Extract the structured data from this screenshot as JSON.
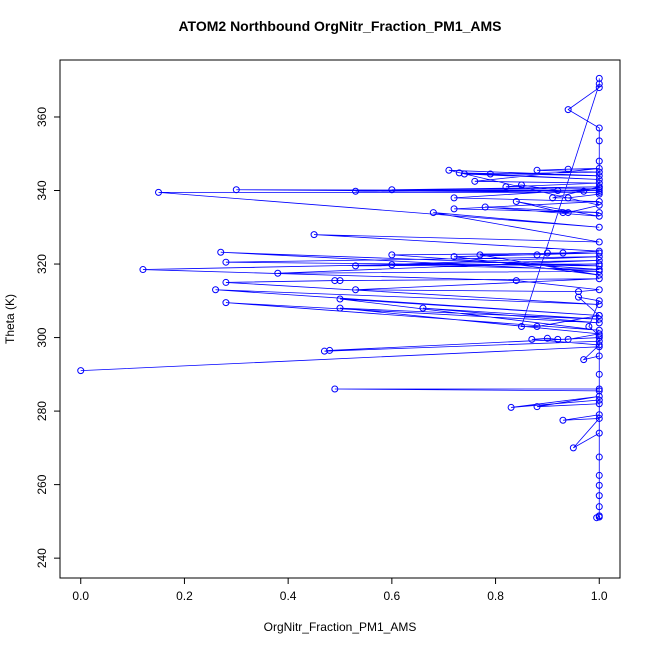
{
  "chart_data": {
    "type": "line",
    "title": "ATOM2 Northbound OrgNitr_Fraction_PM1_AMS",
    "x_label": "OrgNitr_Fraction_PM1_AMS",
    "y_label": "Theta (K)",
    "x": [
      0.0,
      1.0,
      1.0,
      0.48,
      0.47,
      1.0,
      1.0,
      0.49,
      1.0,
      1.0,
      0.83,
      1.0,
      0.88,
      1.0,
      1.0,
      0.93,
      1.0,
      0.95,
      1.0,
      1.0,
      1.0,
      1.0,
      1.0,
      1.0,
      1.0,
      0.995,
      1.0,
      1.0,
      1.0,
      0.97,
      1.0,
      0.87,
      0.9,
      0.92,
      0.94,
      1.0,
      0.5,
      1.0,
      0.66,
      1.0,
      0.28,
      1.0,
      0.5,
      1.0,
      0.26,
      1.0,
      0.28,
      0.49,
      0.5,
      1.0,
      0.53,
      0.96,
      1.0,
      0.84,
      0.12,
      1.0,
      0.38,
      1.0,
      0.27,
      1.0,
      0.28,
      1.0,
      0.53,
      1.0,
      0.6,
      1.0,
      0.6,
      1.0,
      0.72,
      1.0,
      0.77,
      0.88,
      0.9,
      0.93,
      1.0,
      0.45,
      1.0,
      0.68,
      1.0,
      0.15,
      1.0,
      0.3,
      1.0,
      0.53,
      1.0,
      0.6,
      1.0,
      0.72,
      1.0,
      0.72,
      1.0,
      0.78,
      1.0,
      0.84,
      0.93,
      0.94,
      1.0,
      0.71,
      1.0,
      0.73,
      1.0,
      0.74,
      0.79,
      1.0,
      0.88,
      0.94,
      1.0,
      0.76,
      1.0,
      0.82,
      0.85,
      0.92,
      0.97,
      1.0,
      0.91,
      0.94,
      1.0,
      1.0,
      1.0,
      1.0,
      0.94,
      1.0,
      1.0,
      1.0,
      0.85,
      0.88,
      1.0,
      0.96,
      1.0,
      0.98,
      1.0
    ],
    "series": [
      {
        "color": "#0000ff",
        "values": [
          291,
          297.5,
          300,
          296.5,
          296.3,
          299,
          286,
          286,
          285.5,
          283,
          281,
          284,
          281.2,
          282,
          279,
          277.5,
          278,
          270,
          274,
          267.5,
          262.5,
          259.8,
          257,
          254,
          251.2,
          251,
          251.5,
          290,
          295,
          294,
          298,
          299.5,
          299.8,
          299.5,
          299.5,
          301,
          308,
          305,
          308,
          304,
          309.5,
          302,
          310.5,
          306,
          313,
          309,
          315,
          315.5,
          315.5,
          316,
          313,
          312.5,
          313,
          315.5,
          318.5,
          321,
          317.5,
          318,
          323.2,
          319.5,
          320.5,
          322,
          319.5,
          320,
          319.8,
          318.5,
          322.5,
          323,
          322,
          317,
          322.5,
          322.5,
          323,
          323,
          323.5,
          328,
          326,
          334,
          330,
          339.5,
          339.5,
          340.2,
          340,
          339.8,
          341,
          340.2,
          340.5,
          338,
          337,
          335,
          334,
          335.5,
          333,
          337,
          334,
          334,
          336,
          345.5,
          344,
          344.8,
          343,
          344.5,
          344.5,
          345,
          345.5,
          345.8,
          346,
          342.5,
          342,
          341,
          341.5,
          340,
          339.8,
          341,
          338,
          338,
          339,
          348,
          353.5,
          357,
          362,
          368,
          370.5,
          369,
          303,
          303,
          306,
          311,
          310,
          303,
          300.5
        ]
      }
    ],
    "xlim": [
      -0.04,
      1.04
    ],
    "ylim": [
      234.6,
      375.5
    ],
    "xticks": [
      {
        "value": 0,
        "label": "0.0"
      },
      {
        "value": 0.2,
        "label": "0.2"
      },
      {
        "value": 0.4,
        "label": "0.4"
      },
      {
        "value": 0.6,
        "label": "0.6"
      },
      {
        "value": 0.8,
        "label": "0.8"
      },
      {
        "value": 1,
        "label": "1.0"
      }
    ],
    "yticks": [
      240,
      260,
      280,
      300,
      320,
      340,
      360
    ]
  }
}
